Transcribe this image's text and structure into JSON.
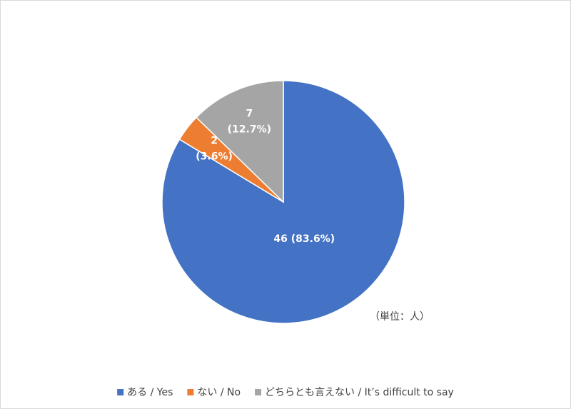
{
  "chart_data": {
    "type": "pie",
    "categories": [
      "ある / Yes",
      "ない / No",
      "どちらとも言えない / It’s difficult to say"
    ],
    "values": [
      46,
      2,
      7
    ],
    "value_labels": [
      [
        "46 (83.6%)"
      ],
      [
        "2",
        "(3.6%)"
      ],
      [
        "7",
        "(12.7%)"
      ]
    ],
    "colors": [
      "#4472c4",
      "#ed7d31",
      "#a5a5a5"
    ],
    "annotation": "（単位：人）",
    "legend": "bottom"
  }
}
